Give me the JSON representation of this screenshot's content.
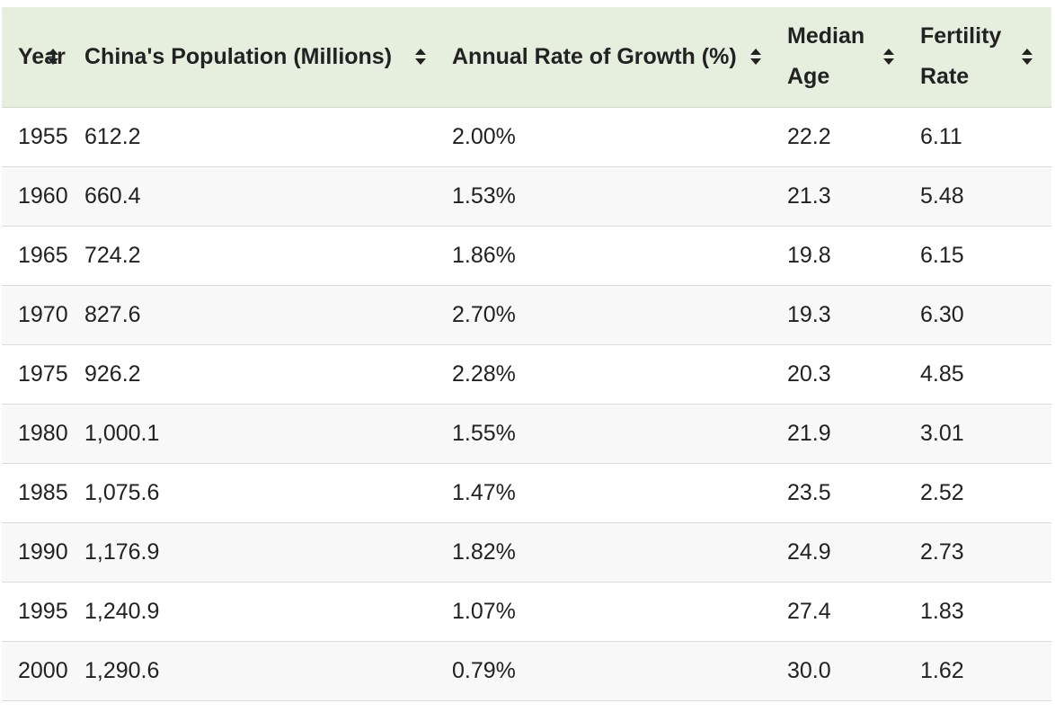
{
  "table": {
    "headers": [
      "Year",
      "China's Population (Millions)",
      "Annual Rate of Growth (%)",
      "Median Age",
      "Fertility Rate"
    ],
    "rows": [
      [
        "1955",
        "612.2",
        "2.00%",
        "22.2",
        "6.11"
      ],
      [
        "1960",
        "660.4",
        "1.53%",
        "21.3",
        "5.48"
      ],
      [
        "1965",
        "724.2",
        "1.86%",
        "19.8",
        "6.15"
      ],
      [
        "1970",
        "827.6",
        "2.70%",
        "19.3",
        "6.30"
      ],
      [
        "1975",
        "926.2",
        "2.28%",
        "20.3",
        "4.85"
      ],
      [
        "1980",
        "1,000.1",
        "1.55%",
        "21.9",
        "3.01"
      ],
      [
        "1985",
        "1,075.6",
        "1.47%",
        "23.5",
        "2.52"
      ],
      [
        "1990",
        "1,176.9",
        "1.82%",
        "24.9",
        "2.73"
      ],
      [
        "1995",
        "1,240.9",
        "1.07%",
        "27.4",
        "1.83"
      ],
      [
        "2000",
        "1,290.6",
        "0.79%",
        "30.0",
        "1.62"
      ]
    ]
  }
}
